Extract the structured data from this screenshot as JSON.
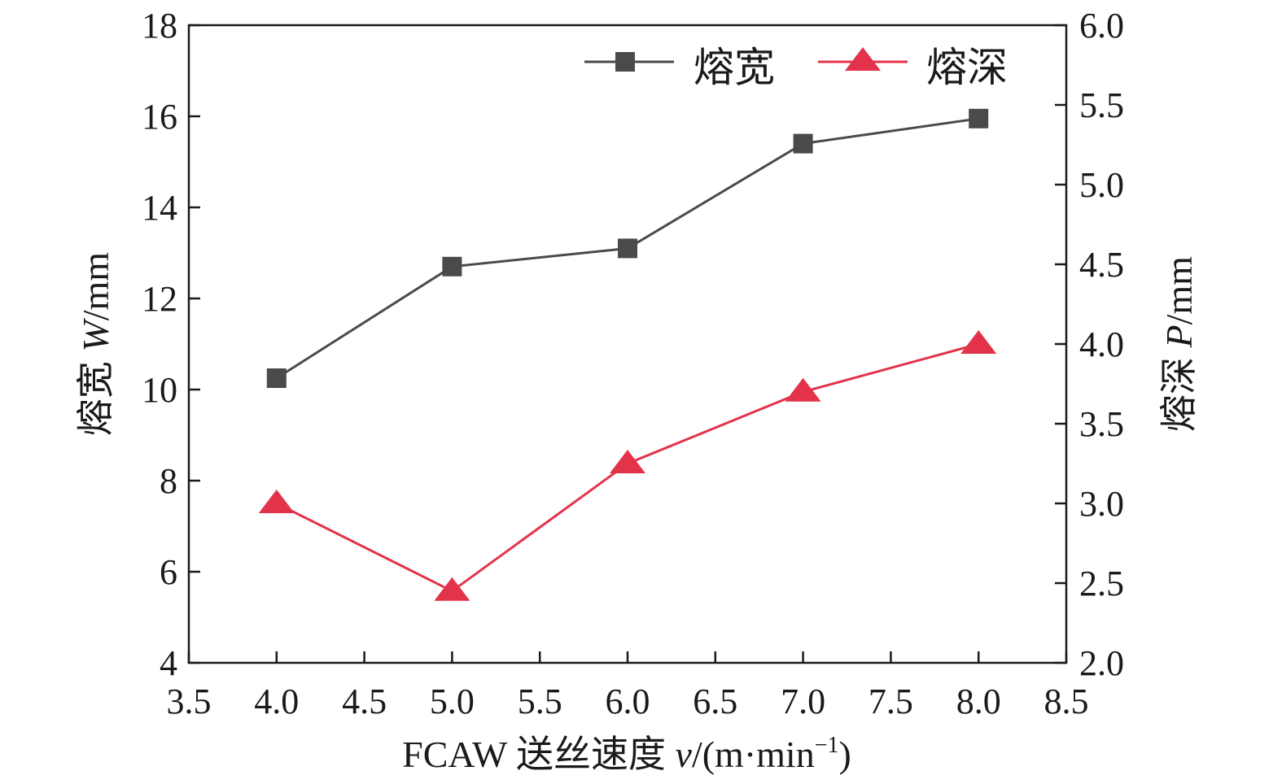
{
  "chart_data": {
    "type": "line",
    "title": "",
    "xlabel": {
      "prefix": "FCAW 送丝速度 ",
      "var": "v",
      "suffix": "/(m·min",
      "sup": "−1",
      "close": ")"
    },
    "ylabel_left": {
      "prefix": "熔宽 ",
      "var": "W",
      "suffix": "/mm"
    },
    "ylabel_right": {
      "prefix": "熔深 ",
      "var": "P",
      "suffix": "/mm"
    },
    "xlim": [
      3.5,
      8.5
    ],
    "ylim_left": [
      4,
      18
    ],
    "ylim_right": [
      2.0,
      6.0
    ],
    "xticks": [
      "3.5",
      "4.0",
      "4.5",
      "5.0",
      "5.5",
      "6.0",
      "6.5",
      "7.0",
      "7.5",
      "8.0",
      "8.5"
    ],
    "yticks_left": [
      "4",
      "6",
      "8",
      "10",
      "12",
      "14",
      "16",
      "18"
    ],
    "yticks_right": [
      "2.0",
      "2.5",
      "3.0",
      "3.5",
      "4.0",
      "4.5",
      "5.0",
      "5.5",
      "6.0"
    ],
    "x": [
      4.0,
      5.0,
      6.0,
      7.0,
      8.0
    ],
    "series": [
      {
        "name": "熔宽",
        "axis": "left",
        "marker": "square",
        "color": "#4a4a4a",
        "values": [
          10.25,
          12.7,
          13.1,
          15.4,
          15.95
        ]
      },
      {
        "name": "熔深",
        "axis": "right",
        "marker": "triangle",
        "color": "#e2334a",
        "values": [
          3.0,
          2.45,
          3.25,
          3.7,
          4.0
        ]
      }
    ],
    "legend": "top-right",
    "grid": false
  }
}
